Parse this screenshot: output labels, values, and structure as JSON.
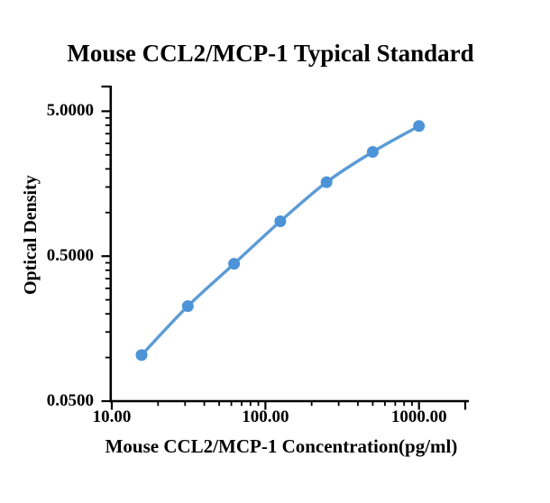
{
  "chart_data": {
    "type": "line",
    "title": "Mouse CCL2/MCP-1 Typical Standard",
    "xlabel": "Mouse CCL2/MCP-1 Concentration(pg/ml)",
    "ylabel": "Optical Density",
    "x_scale": "log",
    "y_scale": "log",
    "grid": false,
    "legend": false,
    "line_smooth": true,
    "marker": "circle",
    "series": [
      {
        "name": "Typical Standard",
        "x": [
          15.625,
          31.25,
          62.5,
          125,
          250,
          500,
          1000
        ],
        "y": [
          0.104,
          0.226,
          0.443,
          0.87,
          1.62,
          2.62,
          3.95
        ]
      }
    ],
    "x_axis": {
      "min": 10,
      "max": 2000,
      "major_ticks": [
        {
          "value": 10,
          "label": "10.00"
        },
        {
          "value": 100,
          "label": "100.00"
        },
        {
          "value": 1000,
          "label": "1000.00"
        }
      ],
      "minor_ticks": [
        20,
        30,
        40,
        50,
        60,
        70,
        80,
        90,
        200,
        300,
        400,
        500,
        600,
        700,
        800,
        900
      ],
      "end_tick": 2000
    },
    "y_axis": {
      "min": 0.05,
      "max": 7.4,
      "major_ticks": [
        {
          "value": 5,
          "label": "5.0000"
        },
        {
          "value": 0.5,
          "label": "0.5000"
        },
        {
          "value": 0.05,
          "label": "0.0500"
        }
      ],
      "minor_ticks": [
        4.5,
        4,
        3.5,
        3,
        2.5,
        2,
        1.5,
        1,
        0.45,
        0.4,
        0.35,
        0.3,
        0.25,
        0.2,
        0.15,
        0.1
      ],
      "end_tick": 7.4
    },
    "colors": {
      "line": "#5B9BD5",
      "marker": "#4D93D8",
      "axis": "#000000",
      "text": "#000000",
      "background": "#FFFFFF"
    }
  }
}
